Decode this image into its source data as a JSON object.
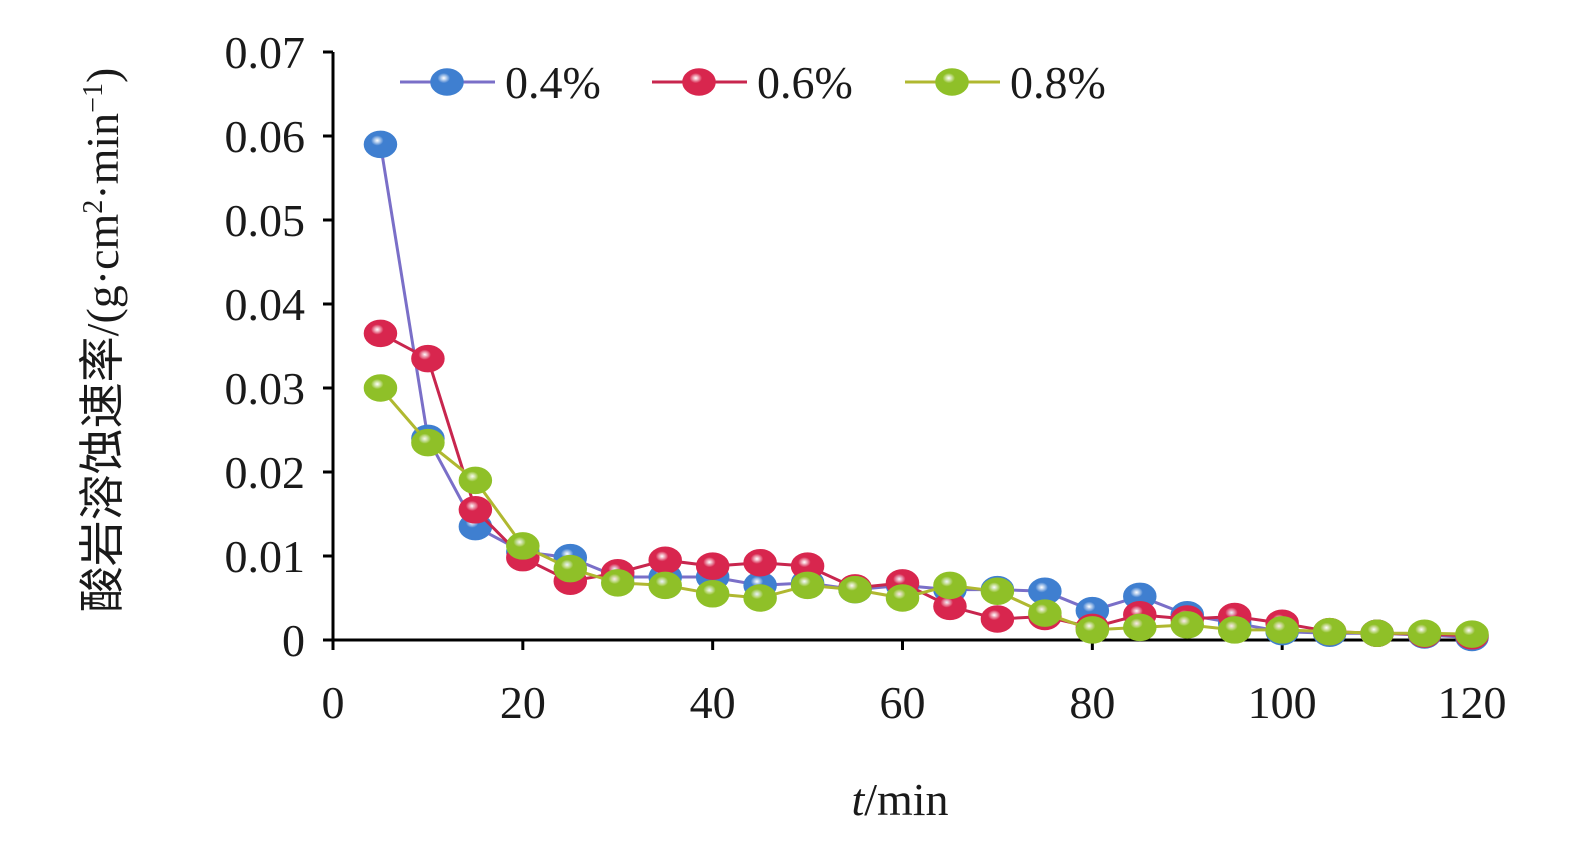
{
  "chart_data": {
    "type": "line",
    "title": "",
    "xlabel": {
      "italic": "t",
      "rest": "/min"
    },
    "ylabel": {
      "text": "酸岩溶蚀速率/(g·cm",
      "sup1": "2",
      "mid": "·min",
      "sup2": "−1",
      "end": ")"
    },
    "xlim": [
      0,
      120
    ],
    "ylim": [
      0,
      0.07
    ],
    "x_ticks": [
      0,
      20,
      40,
      60,
      80,
      100,
      120
    ],
    "x_tick_labels": [
      "0",
      "20",
      "40",
      "60",
      "80",
      "100",
      "120"
    ],
    "y_ticks": [
      0,
      0.01,
      0.02,
      0.03,
      0.04,
      0.05,
      0.06,
      0.07
    ],
    "y_tick_labels": [
      "0",
      "0.01",
      "0.02",
      "0.03",
      "0.04",
      "0.05",
      "0.06",
      "0.07"
    ],
    "grid": false,
    "legend_position": "top",
    "x": [
      5,
      10,
      15,
      20,
      25,
      30,
      35,
      40,
      45,
      50,
      55,
      60,
      65,
      70,
      75,
      80,
      85,
      90,
      95,
      100,
      105,
      110,
      115,
      120
    ],
    "series": [
      {
        "name": "0.4%",
        "color": "#3f7fd0",
        "line_color": "#7a6fc8",
        "values": [
          0.059,
          0.024,
          0.0135,
          0.0105,
          0.0098,
          0.0075,
          0.0075,
          0.0075,
          0.0065,
          0.0068,
          0.006,
          0.0065,
          0.006,
          0.006,
          0.0058,
          0.0035,
          0.0052,
          0.003,
          0.002,
          0.001,
          0.0008,
          0.0008,
          0.0006,
          0.0003
        ]
      },
      {
        "name": "0.6%",
        "color": "#d8264e",
        "line_color": "#c8264e",
        "values": [
          0.0365,
          0.0335,
          0.0155,
          0.0098,
          0.007,
          0.008,
          0.0095,
          0.0088,
          0.0092,
          0.0088,
          0.0062,
          0.0068,
          0.004,
          0.0025,
          0.0028,
          0.0015,
          0.003,
          0.0025,
          0.0028,
          0.002,
          0.001,
          0.0008,
          0.0007,
          0.0005
        ]
      },
      {
        "name": "0.8%",
        "color": "#8fc028",
        "line_color": "#b0b830",
        "values": [
          0.03,
          0.0235,
          0.019,
          0.0112,
          0.0085,
          0.0068,
          0.0065,
          0.0055,
          0.005,
          0.0065,
          0.006,
          0.005,
          0.0065,
          0.0058,
          0.0032,
          0.0012,
          0.0015,
          0.0018,
          0.0012,
          0.0012,
          0.001,
          0.0008,
          0.0008,
          0.0007
        ]
      }
    ]
  }
}
